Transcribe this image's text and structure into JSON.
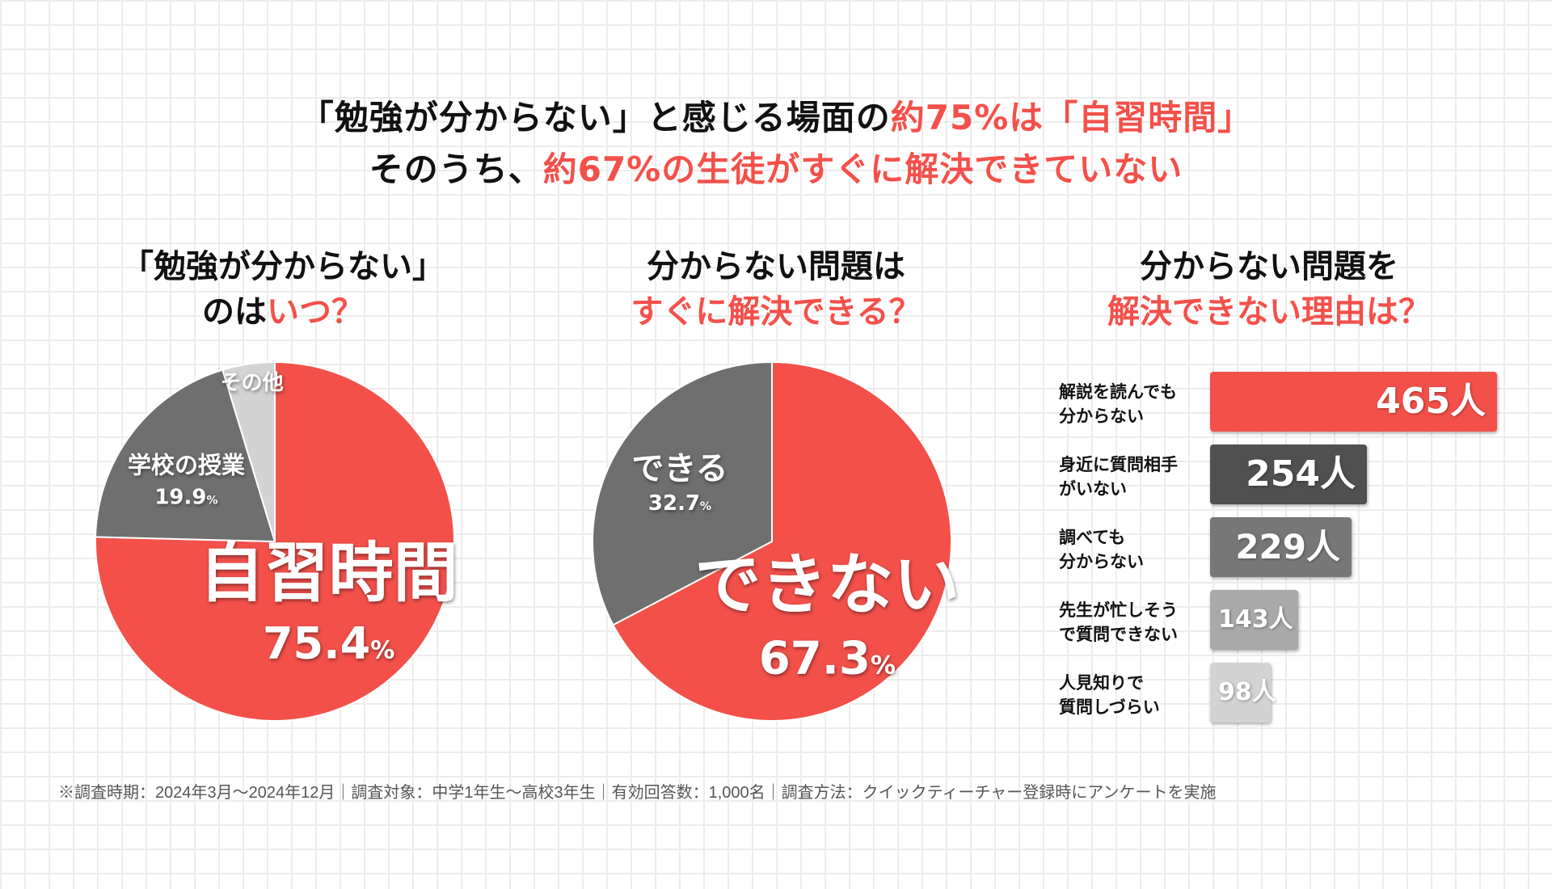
{
  "headline": {
    "line1_pre": "「勉強が分からない」と感じる場面の",
    "line1_accent": "約75%は「自習時間」",
    "line2_pre": "そのうち、",
    "line2_accent": "約67%の生徒がすぐに解決できていない"
  },
  "colors": {
    "red": "#f4504a",
    "dark_gray": "#6f6f6f",
    "darker_gray": "#505050",
    "mid_gray": "#777777",
    "light_gray": "#a9a9a9",
    "pale_gray": "#d3d3d3"
  },
  "panels": [
    {
      "title_line1": "「勉強が分からない」",
      "title_line2_pre": "のは",
      "title_line2_accent": "いつ？"
    },
    {
      "title_line1": "分からない問題は",
      "title_line2_pre": "",
      "title_line2_accent": "すぐに解決できる？"
    },
    {
      "title_line1": "分からない問題を",
      "title_line2_pre": "",
      "title_line2_accent": "解決できない理由は？"
    }
  ],
  "chart_data": [
    {
      "type": "pie",
      "slices": [
        {
          "label": "自習時間",
          "value_text": "75.4",
          "unit": "%",
          "value": 75.4,
          "color": "#f4504a"
        },
        {
          "label": "学校の授業",
          "value_text": "19.9",
          "unit": "%",
          "value": 19.9,
          "color": "#6f6f6f"
        },
        {
          "label": "その他",
          "value_text": "",
          "unit": "",
          "value": 4.7,
          "color": "#d3d3d3"
        }
      ]
    },
    {
      "type": "pie",
      "slices": [
        {
          "label": "できない",
          "value_text": "67.3",
          "unit": "%",
          "value": 67.3,
          "color": "#f4504a"
        },
        {
          "label": "できる",
          "value_text": "32.7",
          "unit": "%",
          "value": 32.7,
          "color": "#6f6f6f"
        }
      ]
    },
    {
      "type": "bar",
      "orientation": "horizontal",
      "categories": [
        "解説を読んでも\n分からない",
        "身近に質問相手\nがいない",
        "調べても\n分からない",
        "先生が忙しそう\nで質問できない",
        "人見知りで\n質問しづらい"
      ],
      "values": [
        465,
        254,
        229,
        143,
        98
      ],
      "value_labels": [
        "465人",
        "254人",
        "229人",
        "143人",
        "98人"
      ],
      "colors": [
        "#f4504a",
        "#505050",
        "#777777",
        "#a9a9a9",
        "#d3d3d3"
      ]
    }
  ],
  "footnote": "※調査時期：2024年3月～2024年12月｜調査対象：中学1年生～高校3年生｜有効回答数：1,000名｜調査方法：クイックティーチャー登録時にアンケートを実施"
}
